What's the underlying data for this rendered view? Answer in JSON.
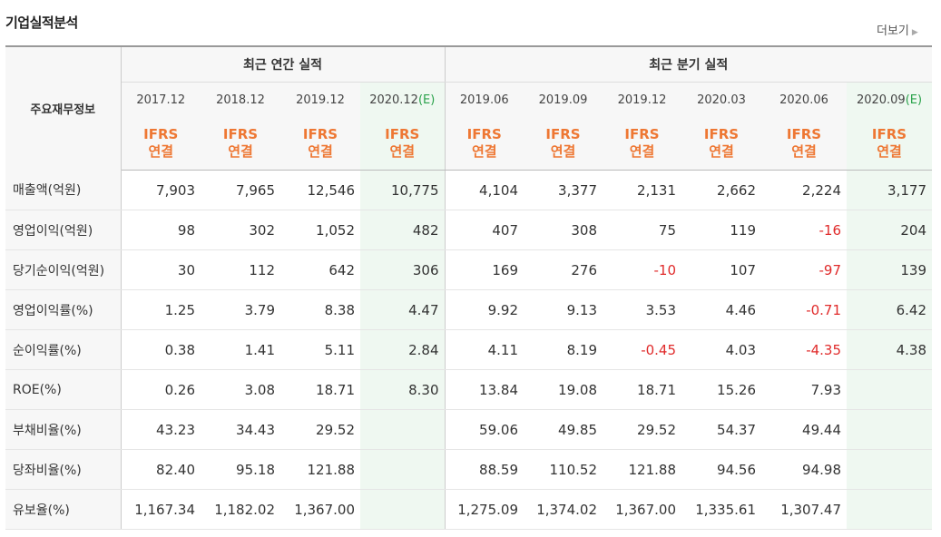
{
  "title": "기업실적분석",
  "more_label": "더보기",
  "main_header": "주요재무정보",
  "group_annual": "최근 연간 실적",
  "group_quarter": "최근 분기 실적",
  "ifrs_line1": "IFRS",
  "ifrs_line2": "연결",
  "estimate_mark": "(E)",
  "periods": [
    {
      "label": "2017.12",
      "est": false
    },
    {
      "label": "2018.12",
      "est": false
    },
    {
      "label": "2019.12",
      "est": false
    },
    {
      "label": "2020.12",
      "est": true
    },
    {
      "label": "2019.06",
      "est": false
    },
    {
      "label": "2019.09",
      "est": false
    },
    {
      "label": "2019.12",
      "est": false
    },
    {
      "label": "2020.03",
      "est": false
    },
    {
      "label": "2020.06",
      "est": false
    },
    {
      "label": "2020.09",
      "est": true
    }
  ],
  "rows": [
    {
      "label": "매출액(억원)",
      "values": [
        "7,903",
        "7,965",
        "12,546",
        "10,775",
        "4,104",
        "3,377",
        "2,131",
        "2,662",
        "2,224",
        "3,177"
      ]
    },
    {
      "label": "영업이익(억원)",
      "values": [
        "98",
        "302",
        "1,052",
        "482",
        "407",
        "308",
        "75",
        "119",
        "-16",
        "204"
      ]
    },
    {
      "label": "당기순이익(억원)",
      "values": [
        "30",
        "112",
        "642",
        "306",
        "169",
        "276",
        "-10",
        "107",
        "-97",
        "139"
      ]
    },
    {
      "label": "영업이익률(%)",
      "values": [
        "1.25",
        "3.79",
        "8.38",
        "4.47",
        "9.92",
        "9.13",
        "3.53",
        "4.46",
        "-0.71",
        "6.42"
      ]
    },
    {
      "label": "순이익률(%)",
      "values": [
        "0.38",
        "1.41",
        "5.11",
        "2.84",
        "4.11",
        "8.19",
        "-0.45",
        "4.03",
        "-4.35",
        "4.38"
      ]
    },
    {
      "label": "ROE(%)",
      "values": [
        "0.26",
        "3.08",
        "18.71",
        "8.30",
        "13.84",
        "19.08",
        "18.71",
        "15.26",
        "7.93",
        ""
      ]
    },
    {
      "label": "부채비율(%)",
      "values": [
        "43.23",
        "34.43",
        "29.52",
        "",
        "59.06",
        "49.85",
        "29.52",
        "54.37",
        "49.44",
        ""
      ]
    },
    {
      "label": "당좌비율(%)",
      "values": [
        "82.40",
        "95.18",
        "121.88",
        "",
        "88.59",
        "110.52",
        "121.88",
        "94.56",
        "94.98",
        ""
      ]
    },
    {
      "label": "유보율(%)",
      "values": [
        "1,167.34",
        "1,182.02",
        "1,367.00",
        "",
        "1,275.09",
        "1,374.02",
        "1,367.00",
        "1,335.61",
        "1,307.47",
        ""
      ]
    }
  ],
  "colors": {
    "negative": "#e02b2b",
    "ifrs": "#ee7733",
    "estimate_bg": "#eff8f1",
    "estimate_text": "#2aa24b"
  }
}
